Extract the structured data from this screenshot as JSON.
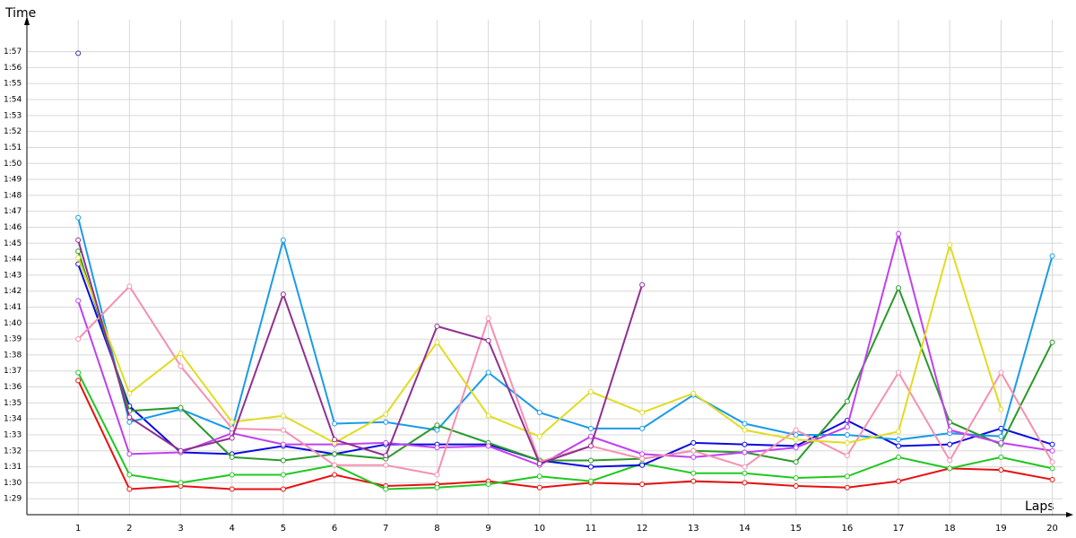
{
  "chart_data": {
    "type": "line",
    "ylabel": "Time",
    "xlabel": "Laps",
    "x": [
      1,
      2,
      3,
      4,
      5,
      6,
      7,
      8,
      9,
      10,
      11,
      12,
      13,
      14,
      15,
      16,
      17,
      18,
      19,
      20
    ],
    "xlim": [
      0,
      20.2
    ],
    "xticks": [
      1,
      2,
      3,
      4,
      5,
      6,
      7,
      8,
      9,
      10,
      11,
      12,
      13,
      14,
      15,
      16,
      17,
      18,
      19,
      20
    ],
    "ylim": [
      88,
      119
    ],
    "yticks": [
      {
        "value": 89,
        "label": "1:29"
      },
      {
        "value": 90,
        "label": "1:30"
      },
      {
        "value": 91,
        "label": "1:31"
      },
      {
        "value": 92,
        "label": "1:32"
      },
      {
        "value": 93,
        "label": "1:33"
      },
      {
        "value": 94,
        "label": "1:34"
      },
      {
        "value": 95,
        "label": "1:35"
      },
      {
        "value": 96,
        "label": "1:36"
      },
      {
        "value": 97,
        "label": "1:37"
      },
      {
        "value": 98,
        "label": "1:38"
      },
      {
        "value": 99,
        "label": "1:39"
      },
      {
        "value": 100,
        "label": "1:40"
      },
      {
        "value": 101,
        "label": "1:41"
      },
      {
        "value": 102,
        "label": "1:42"
      },
      {
        "value": 103,
        "label": "1:43"
      },
      {
        "value": 104,
        "label": "1:44"
      },
      {
        "value": 105,
        "label": "1:45"
      },
      {
        "value": 106,
        "label": "1:46"
      },
      {
        "value": 107,
        "label": "1:47"
      },
      {
        "value": 108,
        "label": "1:48"
      },
      {
        "value": 109,
        "label": "1:49"
      },
      {
        "value": 110,
        "label": "1:50"
      },
      {
        "value": 111,
        "label": "1:51"
      },
      {
        "value": 112,
        "label": "1:52"
      },
      {
        "value": 113,
        "label": "1:53"
      },
      {
        "value": 114,
        "label": "1:54"
      },
      {
        "value": 115,
        "label": "1:55"
      },
      {
        "value": 116,
        "label": "1:56"
      },
      {
        "value": 117,
        "label": "1:57"
      }
    ],
    "grid": true,
    "series": [
      {
        "color": "#e81010",
        "values": [
          96.4,
          89.6,
          89.8,
          89.6,
          89.6,
          90.5,
          89.8,
          89.9,
          90.1,
          89.7,
          90.0,
          89.9,
          90.1,
          90.0,
          89.8,
          89.7,
          90.1,
          90.9,
          90.8,
          90.2
        ]
      },
      {
        "color": "#20c820",
        "values": [
          96.9,
          90.5,
          90.0,
          90.5,
          90.5,
          91.1,
          89.6,
          89.7,
          89.9,
          90.4,
          90.1,
          91.2,
          90.6,
          90.6,
          90.3,
          90.4,
          91.6,
          90.9,
          91.6,
          90.9
        ]
      },
      {
        "color": "#0a0ae0",
        "values": [
          103.7,
          94.8,
          91.9,
          91.8,
          92.3,
          91.8,
          92.4,
          92.4,
          92.4,
          91.4,
          91.0,
          91.1,
          92.5,
          92.4,
          92.3,
          93.9,
          92.3,
          92.4,
          93.4,
          92.4
        ]
      },
      {
        "color": "#1a9be8",
        "values": [
          106.6,
          93.8,
          94.6,
          93.3,
          105.2,
          93.7,
          93.8,
          93.3,
          96.9,
          94.4,
          93.4,
          93.4,
          95.5,
          93.7,
          93.0,
          93.0,
          92.7,
          93.1,
          92.9,
          104.2
        ]
      },
      {
        "color": "#2a9a2a",
        "values": [
          104.5,
          94.5,
          94.7,
          91.6,
          91.4,
          91.8,
          91.5,
          93.6,
          92.5,
          91.4,
          91.4,
          91.5,
          92.0,
          91.9,
          91.3,
          95.1,
          102.2,
          93.8,
          92.4,
          98.8
        ]
      },
      {
        "color": "#c040f0",
        "values": [
          101.4,
          91.8,
          91.9,
          93.1,
          92.4,
          92.4,
          92.5,
          92.2,
          92.3,
          91.1,
          92.9,
          91.8,
          91.6,
          91.9,
          92.2,
          93.5,
          105.6,
          93.3,
          92.5,
          92.0
        ]
      },
      {
        "color": "#f590b0",
        "values": [
          99.0,
          102.3,
          97.3,
          93.4,
          93.3,
          91.1,
          91.1,
          90.5,
          100.3,
          91.3,
          92.3,
          91.5,
          92.0,
          91.0,
          93.3,
          91.7,
          96.9,
          91.4,
          96.9,
          91.3
        ]
      },
      {
        "color": "#e0dc20",
        "values": [
          104.1,
          95.6,
          98.1,
          93.8,
          94.2,
          92.5,
          94.3,
          98.8,
          94.2,
          92.9,
          95.7,
          94.4,
          95.6,
          93.3,
          92.7,
          92.5,
          93.2,
          104.9,
          94.6,
          null
        ]
      },
      {
        "color": "#903090",
        "values": [
          105.2,
          94.1,
          92.0,
          92.8,
          101.8,
          92.7,
          91.7,
          99.8,
          98.9,
          91.2,
          92.3,
          102.4,
          null,
          null,
          null,
          null,
          null,
          null,
          null,
          null
        ]
      },
      {
        "color": "#3030a0",
        "values": [
          116.9,
          null,
          null,
          null,
          null,
          null,
          null,
          null,
          null,
          null,
          null,
          null,
          null,
          null,
          null,
          null,
          null,
          null,
          null,
          null
        ]
      }
    ]
  }
}
